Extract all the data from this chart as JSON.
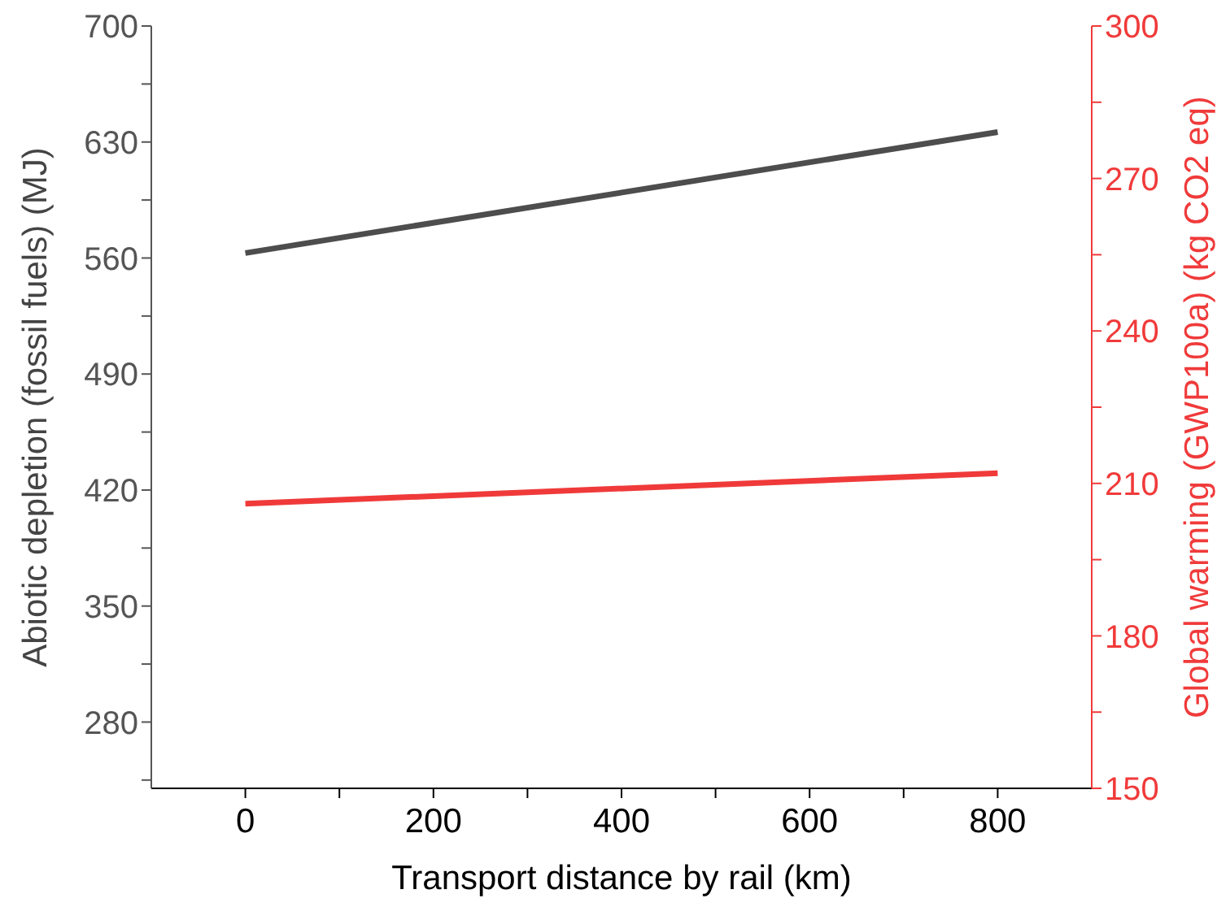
{
  "chart_data": {
    "type": "line",
    "xlabel": "Transport distance by rail (km)",
    "ylabel": "Abiotic depletion (fossil fuels) (MJ)",
    "y2label": "Global warming (GWP100a) (kg CO2 eq)",
    "x": [
      0,
      800
    ],
    "series": [
      {
        "color": "#4d4d4d",
        "values": [
          563,
          636
        ]
      },
      {
        "color": "#f03a3a",
        "values": [
          206,
          212
        ],
        "axis": "y2"
      }
    ],
    "xlim": [
      -100,
      900
    ],
    "xticks": [
      0,
      {
        "value": 100,
        "label": null
      },
      200,
      {
        "value": 300,
        "label": null
      },
      400,
      {
        "value": 500,
        "label": null
      },
      600,
      {
        "value": 700,
        "label": null
      },
      800
    ],
    "ylim": [
      240,
      700
    ],
    "yticks": [
      {
        "value": 245,
        "label": null
      },
      280,
      {
        "value": 315,
        "label": null
      },
      350,
      {
        "value": 385,
        "label": null
      },
      420,
      {
        "value": 455,
        "label": null
      },
      490,
      {
        "value": 525,
        "label": null
      },
      560,
      {
        "value": 595,
        "label": null
      },
      630,
      {
        "value": 665,
        "label": null
      },
      700
    ],
    "y2lim": [
      150,
      300
    ],
    "y2ticks": [
      150,
      {
        "value": 165,
        "label": null
      },
      180,
      {
        "value": 195,
        "label": null
      },
      210,
      {
        "value": 225,
        "label": null
      },
      240,
      {
        "value": 255,
        "label": null
      },
      270,
      {
        "value": 285,
        "label": null
      },
      300
    ],
    "grid": false,
    "legend": false,
    "marker": "none",
    "line_style": "solid"
  }
}
